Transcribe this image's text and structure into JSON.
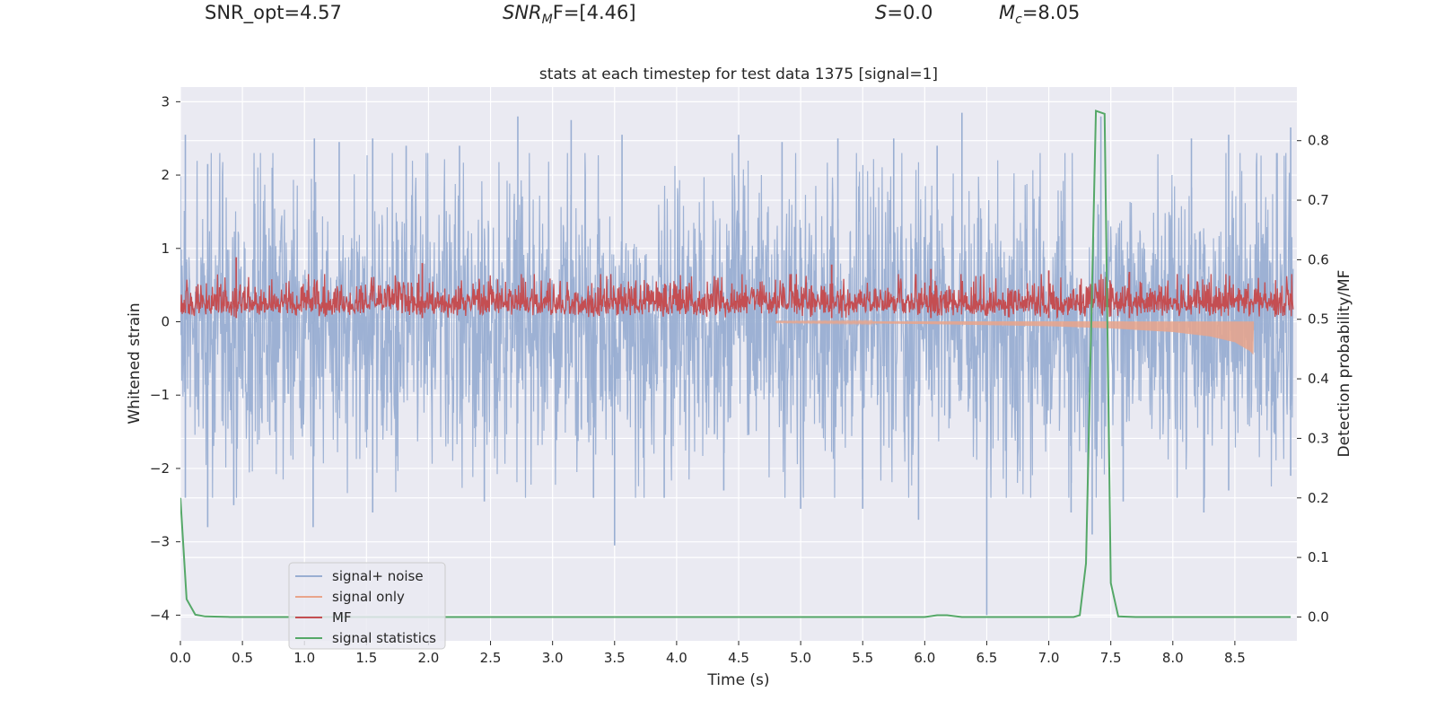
{
  "header": {
    "snr_opt_label": "SNR_opt=4.57",
    "snr_mf_main": "SNR",
    "snr_mf_sub": "M",
    "snr_mf_tail": "F=[4.46]",
    "s_main": "S",
    "s_tail": "=0.0",
    "mc_main": "M",
    "mc_sub": "c",
    "mc_tail": "=8.05"
  },
  "chart_data": {
    "type": "line",
    "title": "stats at each timestep for test data 1375 [signal=1]",
    "xlabel": "Time (s)",
    "ylabel": "Whitened strain",
    "ylabel_right": "Detection probability/MF",
    "xlim": [
      0.0,
      9.0
    ],
    "ylim": [
      -4.35,
      3.2
    ],
    "ylim_right": [
      -0.04,
      0.89
    ],
    "x_ticks": [
      "0.0",
      "0.5",
      "1.0",
      "1.5",
      "2.0",
      "2.5",
      "3.0",
      "3.5",
      "4.0",
      "4.5",
      "5.0",
      "5.5",
      "6.0",
      "6.5",
      "7.0",
      "7.5",
      "8.0",
      "8.5"
    ],
    "y_ticks": [
      "3",
      "2",
      "1",
      "0",
      "−1",
      "−2",
      "−3",
      "−4"
    ],
    "y_ticks_right": [
      "0.8",
      "0.7",
      "0.6",
      "0.5",
      "0.4",
      "0.3",
      "0.2",
      "0.1",
      "0.0"
    ],
    "grid": true,
    "legend_position": "lower-left",
    "colors": {
      "background": "#eaeaf2",
      "noise": "#99aed2",
      "signal": "#e9a58b",
      "mf": "#c44e52",
      "stats": "#55a868"
    },
    "series": [
      {
        "name": "signal+ noise",
        "axis": "left",
        "description": "whitened noisy strain, dense; typical envelope about ±2, extremes up to 2.8 / -3.0",
        "envelope_typical": [
          -2.0,
          2.0
        ],
        "peaks_up": [
          [
            0.04,
            2.55
          ],
          [
            0.22,
            2.15
          ],
          [
            0.74,
            2.1
          ],
          [
            1.08,
            2.5
          ],
          [
            1.28,
            2.45
          ],
          [
            1.55,
            2.5
          ],
          [
            1.82,
            2.4
          ],
          [
            2.25,
            2.4
          ],
          [
            2.72,
            2.8
          ],
          [
            3.15,
            2.75
          ],
          [
            3.56,
            2.55
          ],
          [
            4.5,
            2.55
          ],
          [
            4.85,
            2.45
          ],
          [
            5.3,
            2.5
          ],
          [
            5.75,
            2.5
          ],
          [
            6.1,
            2.4
          ],
          [
            6.3,
            2.85
          ],
          [
            7.42,
            2.8
          ],
          [
            8.15,
            2.5
          ],
          [
            8.45,
            2.55
          ],
          [
            8.95,
            2.65
          ]
        ],
        "peaks_down": [
          [
            0.04,
            -2.4
          ],
          [
            0.22,
            -2.8
          ],
          [
            0.43,
            -2.5
          ],
          [
            1.07,
            -2.8
          ],
          [
            1.55,
            -2.6
          ],
          [
            2.45,
            -2.45
          ],
          [
            3.33,
            -2.4
          ],
          [
            3.5,
            -3.05
          ],
          [
            3.9,
            -2.4
          ],
          [
            4.38,
            -2.3
          ],
          [
            5.0,
            -2.55
          ],
          [
            5.5,
            -2.55
          ],
          [
            5.95,
            -2.7
          ],
          [
            6.5,
            -4.0
          ],
          [
            7.18,
            -2.6
          ],
          [
            7.35,
            -2.9
          ],
          [
            7.6,
            -2.45
          ],
          [
            8.25,
            -2.6
          ],
          [
            8.45,
            -2.3
          ],
          [
            8.95,
            -2.1
          ]
        ]
      },
      {
        "name": "signal only",
        "axis": "left",
        "description": "chirp waveform, below zero, amplitude grows until merger then ends",
        "t_start": 4.8,
        "t_end": 8.65,
        "points": [
          [
            4.8,
            -0.01
          ],
          [
            6.0,
            -0.03
          ],
          [
            7.0,
            -0.06
          ],
          [
            7.5,
            -0.09
          ],
          [
            8.0,
            -0.14
          ],
          [
            8.3,
            -0.2
          ],
          [
            8.5,
            -0.28
          ],
          [
            8.62,
            -0.4
          ],
          [
            8.65,
            -0.45
          ]
        ]
      },
      {
        "name": "MF",
        "axis": "left",
        "description": "matched-filter output, dense positive trace",
        "band": [
          0.05,
          0.55
        ],
        "peaks": [
          [
            0.45,
            0.88
          ],
          [
            1.95,
            0.8
          ],
          [
            5.25,
            0.78
          ],
          [
            6.05,
            0.72
          ],
          [
            7.0,
            0.7
          ],
          [
            7.65,
            0.68
          ]
        ]
      },
      {
        "name": "signal statistics",
        "axis": "right",
        "points": [
          [
            0.0,
            0.2
          ],
          [
            0.05,
            0.03
          ],
          [
            0.12,
            0.004
          ],
          [
            0.2,
            0.001
          ],
          [
            0.4,
            0.0
          ],
          [
            1.0,
            0.0
          ],
          [
            2.0,
            0.0
          ],
          [
            3.0,
            0.0
          ],
          [
            4.0,
            0.0
          ],
          [
            5.0,
            0.0
          ],
          [
            6.0,
            0.0
          ],
          [
            6.1,
            0.003
          ],
          [
            6.18,
            0.003
          ],
          [
            6.3,
            0.0
          ],
          [
            7.0,
            0.0
          ],
          [
            7.2,
            0.0
          ],
          [
            7.25,
            0.003
          ],
          [
            7.3,
            0.09
          ],
          [
            7.38,
            0.85
          ],
          [
            7.45,
            0.845
          ],
          [
            7.5,
            0.057
          ],
          [
            7.56,
            0.001
          ],
          [
            7.7,
            0.0
          ],
          [
            8.0,
            0.0
          ],
          [
            8.5,
            0.0
          ],
          [
            8.95,
            0.0
          ]
        ]
      }
    ]
  }
}
